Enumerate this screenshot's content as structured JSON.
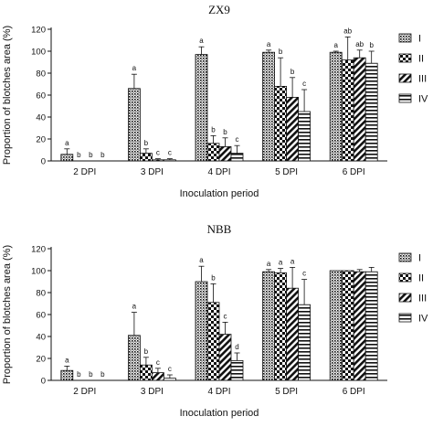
{
  "chart_data": [
    {
      "type": "bar",
      "title": "ZX9",
      "xlabel": "Inoculation period",
      "ylabel": "Proportion of blotches area (%)",
      "ylim": [
        0,
        120
      ],
      "yticks": [
        0,
        20,
        40,
        60,
        80,
        100,
        120
      ],
      "grid": false,
      "legend": "right",
      "categories": [
        "2 DPI",
        "3 DPI",
        "4 DPI",
        "5 DPI",
        "6 DPI"
      ],
      "series": [
        {
          "name": "I",
          "pattern": "dots",
          "values": [
            6,
            66,
            97,
            99,
            99
          ],
          "errors": [
            5,
            13,
            7,
            2,
            1
          ],
          "labels": [
            "a",
            "a",
            "a",
            "a",
            "a"
          ]
        },
        {
          "name": "II",
          "pattern": "check",
          "values": [
            0,
            7,
            16,
            68,
            92
          ],
          "errors": [
            0,
            4,
            7,
            26,
            21
          ],
          "labels": [
            "b",
            "b",
            "b",
            "b",
            "ab"
          ]
        },
        {
          "name": "III",
          "pattern": "diag",
          "values": [
            0,
            1,
            13,
            58,
            94
          ],
          "errors": [
            0,
            1,
            8,
            18,
            7
          ],
          "labels": [
            "b",
            "c",
            "b",
            "b",
            "ab"
          ]
        },
        {
          "name": "IV",
          "pattern": "horiz",
          "values": [
            0,
            1,
            7,
            45,
            89
          ],
          "errors": [
            0,
            1,
            7,
            20,
            11
          ],
          "labels": [
            "b",
            "c",
            "c",
            "c",
            "b"
          ]
        }
      ]
    },
    {
      "type": "bar",
      "title": "NBB",
      "xlabel": "Inoculation period",
      "ylabel": "Proportion of blotches area (%)",
      "ylim": [
        0,
        120
      ],
      "yticks": [
        0,
        20,
        40,
        60,
        80,
        100,
        120
      ],
      "grid": false,
      "legend": "right",
      "categories": [
        "2 DPI",
        "3 DPI",
        "4 DPI",
        "5 DPI",
        "6 DPI"
      ],
      "series": [
        {
          "name": "I",
          "pattern": "dots",
          "values": [
            9,
            41,
            90,
            99,
            100
          ],
          "errors": [
            4,
            21,
            14,
            2,
            0
          ],
          "labels": [
            "a",
            "a",
            "a",
            "a",
            ""
          ]
        },
        {
          "name": "II",
          "pattern": "check",
          "values": [
            0,
            14,
            71,
            98,
            100
          ],
          "errors": [
            0,
            7,
            17,
            4,
            0
          ],
          "labels": [
            "b",
            "b",
            "b",
            "a",
            ""
          ]
        },
        {
          "name": "III",
          "pattern": "diag",
          "values": [
            0,
            7,
            42,
            84,
            99
          ],
          "errors": [
            0,
            4,
            11,
            19,
            2
          ],
          "labels": [
            "b",
            "c",
            "c",
            "a",
            ""
          ]
        },
        {
          "name": "IV",
          "pattern": "horiz",
          "values": [
            0,
            2,
            18,
            69,
            99
          ],
          "errors": [
            0,
            3,
            7,
            23,
            4
          ],
          "labels": [
            "b",
            "c",
            "d",
            "c",
            ""
          ]
        }
      ]
    }
  ]
}
